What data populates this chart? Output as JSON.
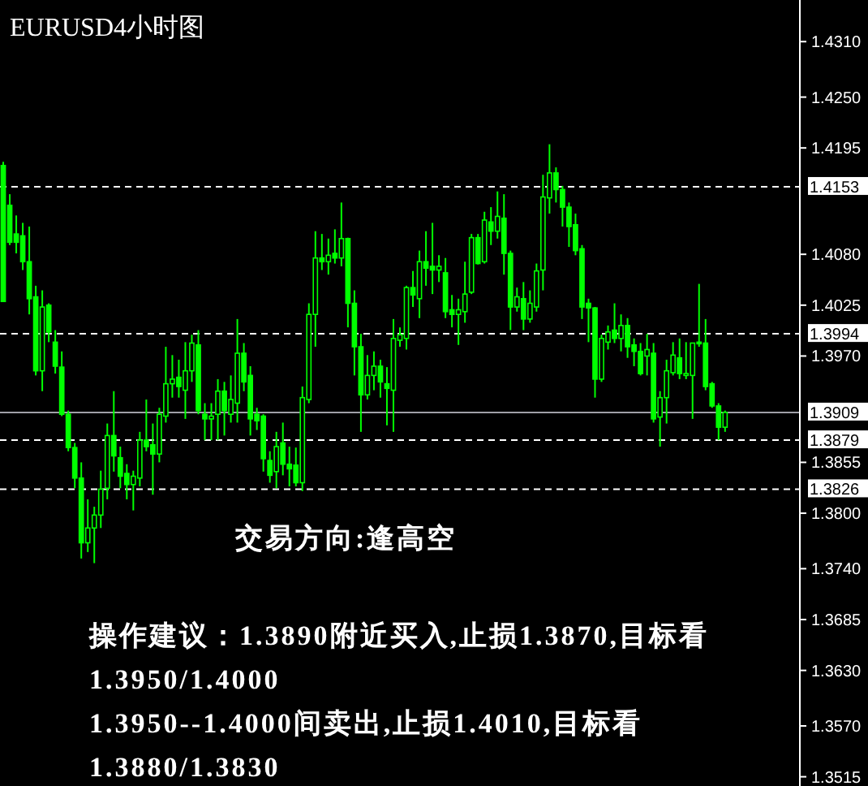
{
  "chart_data": {
    "type": "candlestick",
    "title": "EURUSD4小时图",
    "color": "#00ff00",
    "categories": [
      null,
      null,
      null,
      null,
      null,
      null,
      null,
      null,
      null,
      null,
      null,
      null,
      null,
      null,
      null,
      null,
      null,
      null,
      null,
      null,
      null,
      null,
      null,
      null,
      null,
      null,
      null,
      null,
      null,
      null,
      null,
      null,
      null,
      null,
      null,
      null,
      null,
      null,
      null,
      null,
      null,
      null,
      null,
      null,
      null,
      null,
      null,
      null,
      null,
      null,
      null,
      null,
      null,
      null,
      null,
      null,
      null,
      null,
      null,
      null,
      null,
      null,
      null,
      null,
      null,
      null,
      null,
      null,
      null,
      null,
      null,
      null,
      null,
      null,
      null,
      null,
      null,
      null,
      null,
      null,
      null,
      null,
      null,
      null,
      null,
      null,
      null,
      null,
      null,
      null,
      null,
      null,
      null,
      null,
      null,
      null,
      null,
      null,
      null,
      null,
      null,
      null,
      null,
      null,
      null,
      null,
      null,
      null,
      null,
      null,
      null,
      null
    ],
    "ohlc": [
      [
        1.4176,
        1.418,
        1.4029,
        1.4029
      ],
      [
        1.4133,
        1.4145,
        1.409,
        1.4093
      ],
      [
        1.4102,
        1.4122,
        1.4081,
        1.4093
      ],
      [
        1.41,
        1.4114,
        1.4063,
        1.4072
      ],
      [
        1.4072,
        1.411,
        1.4015,
        1.4032
      ],
      [
        1.4034,
        1.4046,
        1.3949,
        1.3954
      ],
      [
        1.3954,
        1.4041,
        1.3932,
        1.4023
      ],
      [
        1.4025,
        1.4027,
        1.3985,
        1.3996
      ],
      [
        1.3985,
        1.3998,
        1.3951,
        1.3959
      ],
      [
        1.3958,
        1.3975,
        1.3905,
        1.3907
      ],
      [
        1.3907,
        1.3911,
        1.3867,
        1.3871
      ],
      [
        1.3871,
        1.3876,
        1.3827,
        1.3838
      ],
      [
        1.3838,
        1.3855,
        1.3751,
        1.3768
      ],
      [
        1.3768,
        1.3815,
        1.3758,
        1.3784
      ],
      [
        1.3784,
        1.3807,
        1.3746,
        1.3798
      ],
      [
        1.3798,
        1.3846,
        1.3784,
        1.3826
      ],
      [
        1.3827,
        1.3897,
        1.3815,
        1.3884
      ],
      [
        1.3884,
        1.3932,
        1.3845,
        1.3862
      ],
      [
        1.386,
        1.3872,
        1.3827,
        1.384
      ],
      [
        1.3843,
        1.3853,
        1.3815,
        1.3831
      ],
      [
        1.3831,
        1.3846,
        1.3803,
        1.384
      ],
      [
        1.3838,
        1.3888,
        1.3829,
        1.3879
      ],
      [
        1.3879,
        1.3923,
        1.3867,
        1.3872
      ],
      [
        1.3874,
        1.3897,
        1.382,
        1.3864
      ],
      [
        1.3864,
        1.3914,
        1.3855,
        1.3907
      ],
      [
        1.3905,
        1.398,
        1.3898,
        1.394
      ],
      [
        1.394,
        1.3971,
        1.3925,
        1.3945
      ],
      [
        1.3947,
        1.3966,
        1.3925,
        1.3937
      ],
      [
        1.3933,
        1.3985,
        1.3902,
        1.3954
      ],
      [
        1.3954,
        1.3993,
        1.3942,
        1.3984
      ],
      [
        1.3982,
        1.3998,
        1.3907,
        1.3911
      ],
      [
        1.3907,
        1.3919,
        1.3879,
        1.3902
      ],
      [
        1.3902,
        1.3919,
        1.3879,
        1.3905
      ],
      [
        1.3907,
        1.3945,
        1.3879,
        1.3932
      ],
      [
        1.3932,
        1.3942,
        1.3884,
        1.3911
      ],
      [
        1.3907,
        1.3949,
        1.3898,
        1.3923
      ],
      [
        1.3919,
        1.401,
        1.3898,
        1.3973
      ],
      [
        1.3973,
        1.3984,
        1.3932,
        1.3942
      ],
      [
        1.3949,
        1.3959,
        1.3884,
        1.3902
      ],
      [
        1.3907,
        1.3914,
        1.389,
        1.39
      ],
      [
        1.3905,
        1.3907,
        1.3845,
        1.3859
      ],
      [
        1.3857,
        1.3867,
        1.3833,
        1.3841
      ],
      [
        1.3845,
        1.3888,
        1.3827,
        1.3872
      ],
      [
        1.3876,
        1.3898,
        1.3841,
        1.3853
      ],
      [
        1.3853,
        1.3872,
        1.3829,
        1.3848
      ],
      [
        1.3852,
        1.3871,
        1.3829,
        1.3833
      ],
      [
        1.3833,
        1.3937,
        1.3824,
        1.3925
      ],
      [
        1.3923,
        1.4027,
        1.3919,
        1.4015
      ],
      [
        1.4015,
        1.4105,
        1.398,
        1.4076
      ],
      [
        1.4076,
        1.4102,
        1.4063,
        1.4072
      ],
      [
        1.4072,
        1.4097,
        1.4058,
        1.4079
      ],
      [
        1.4081,
        1.4107,
        1.407,
        1.4076
      ],
      [
        1.4076,
        1.4136,
        1.4067,
        1.4097
      ],
      [
        1.4097,
        1.4098,
        1.4001,
        1.4027
      ],
      [
        1.4027,
        1.4041,
        1.3949,
        1.398
      ],
      [
        1.398,
        1.3994,
        1.3888,
        1.3928
      ],
      [
        1.3928,
        1.3971,
        1.3923,
        1.3949
      ],
      [
        1.3949,
        1.3975,
        1.3933,
        1.3959
      ],
      [
        1.3959,
        1.3966,
        1.3925,
        1.3942
      ],
      [
        1.394,
        1.3958,
        1.3895,
        1.3935
      ],
      [
        1.3933,
        1.401,
        1.3888,
        1.3989
      ],
      [
        1.3987,
        1.4001,
        1.398,
        1.3993
      ],
      [
        1.3989,
        1.4046,
        1.3977,
        1.4044
      ],
      [
        1.4044,
        1.4062,
        1.4023,
        1.4036
      ],
      [
        1.4032,
        1.4084,
        1.4011,
        1.4072
      ],
      [
        1.4072,
        1.4105,
        1.4046,
        1.4065
      ],
      [
        1.4067,
        1.4114,
        1.4037,
        1.4063
      ],
      [
        1.4063,
        1.4079,
        1.405,
        1.4067
      ],
      [
        1.406,
        1.4076,
        1.4011,
        1.4018
      ],
      [
        1.402,
        1.4036,
        1.4001,
        1.4015
      ],
      [
        1.4015,
        1.4032,
        1.3982,
        1.402
      ],
      [
        1.4018,
        1.4072,
        1.4006,
        1.4037
      ],
      [
        1.4039,
        1.4102,
        1.4037,
        1.4098
      ],
      [
        1.4098,
        1.4102,
        1.4069,
        1.407
      ],
      [
        1.4072,
        1.4126,
        1.407,
        1.4117
      ],
      [
        1.4115,
        1.4131,
        1.409,
        1.4105
      ],
      [
        1.4105,
        1.4148,
        1.4097,
        1.4121
      ],
      [
        1.4119,
        1.4145,
        1.4058,
        1.4081
      ],
      [
        1.4081,
        1.4084,
        1.3998,
        1.4023
      ],
      [
        1.4023,
        1.4044,
        1.4018,
        1.4034
      ],
      [
        1.4032,
        1.405,
        1.3998,
        1.401
      ],
      [
        1.401,
        1.4041,
        1.4006,
        1.4027
      ],
      [
        1.4023,
        1.407,
        1.4018,
        1.4062
      ],
      [
        1.4063,
        1.4166,
        1.4041,
        1.4142
      ],
      [
        1.4141,
        1.4199,
        1.4124,
        1.4168
      ],
      [
        1.4168,
        1.4174,
        1.4136,
        1.415
      ],
      [
        1.415,
        1.4154,
        1.411,
        1.4131
      ],
      [
        1.4131,
        1.4136,
        1.4088,
        1.411
      ],
      [
        1.4112,
        1.4124,
        1.4079,
        1.4084
      ],
      [
        1.4086,
        1.409,
        1.401,
        1.4023
      ],
      [
        1.4027,
        1.4032,
        1.3985,
        1.4022
      ],
      [
        1.4022,
        1.4023,
        1.3925,
        1.3945
      ],
      [
        1.3945,
        1.3993,
        1.3942,
        1.3989
      ],
      [
        1.3985,
        1.4003,
        1.3977,
        1.3996
      ],
      [
        1.3998,
        1.4027,
        1.3984,
        1.3989
      ],
      [
        1.3989,
        1.4015,
        1.3975,
        1.4003
      ],
      [
        1.4003,
        1.4011,
        1.3968,
        1.398
      ],
      [
        1.3982,
        1.3989,
        1.3959,
        1.3975
      ],
      [
        1.3975,
        1.3984,
        1.3949,
        1.3951
      ],
      [
        1.397,
        1.3994,
        1.3949,
        1.3977
      ],
      [
        1.3973,
        1.3984,
        1.3898,
        1.3902
      ],
      [
        1.3904,
        1.3932,
        1.3872,
        1.3925
      ],
      [
        1.3925,
        1.3966,
        1.3897,
        1.3954
      ],
      [
        1.3952,
        1.3985,
        1.3949,
        1.3971
      ],
      [
        1.3968,
        1.3989,
        1.3945,
        1.3951
      ],
      [
        1.3949,
        1.3985,
        1.3945,
        1.3951
      ],
      [
        1.3949,
        1.3984,
        1.3902,
        1.3984
      ],
      [
        1.3985,
        1.4048,
        1.398,
        1.3984
      ],
      [
        1.3984,
        1.401,
        1.3933,
        1.3937
      ],
      [
        1.394,
        1.3942,
        1.3914,
        1.3916
      ],
      [
        1.3916,
        1.3919,
        1.3879,
        1.3893
      ],
      [
        1.3893,
        1.3911,
        1.3888,
        1.3909
      ]
    ],
    "ylim": [
      1.3505,
      1.4355
    ],
    "yticks": [
      {
        "value": 1.431,
        "label": "1.4310"
      },
      {
        "value": 1.425,
        "label": "1.4250"
      },
      {
        "value": 1.4195,
        "label": "1.4195"
      },
      {
        "value": 1.408,
        "label": "1.4080"
      },
      {
        "value": 1.4025,
        "label": "1.4025"
      },
      {
        "value": 1.397,
        "label": "1.3970"
      },
      {
        "value": 1.3855,
        "label": "1.3855"
      },
      {
        "value": 1.38,
        "label": "1.3800"
      },
      {
        "value": 1.374,
        "label": "1.3740"
      },
      {
        "value": 1.3685,
        "label": "1.3685"
      },
      {
        "value": 1.363,
        "label": "1.3630"
      },
      {
        "value": 1.357,
        "label": "1.3570"
      },
      {
        "value": 1.3515,
        "label": "1.3515"
      }
    ],
    "ref_lines": [
      {
        "axis": "y",
        "value": 1.4153,
        "label": "1.4153",
        "color": "#ffffff",
        "line_style": "dashed"
      },
      {
        "axis": "y",
        "value": 1.3994,
        "label": "1.3994",
        "color": "#ffffff",
        "line_style": "dashed"
      },
      {
        "axis": "y",
        "value": 1.3909,
        "label": "1.3909",
        "color": "#a0a0a8",
        "line_style": "solid"
      },
      {
        "axis": "y",
        "value": 1.3879,
        "label": "1.3879",
        "color": "#ffffff",
        "line_style": "dashed"
      },
      {
        "axis": "y",
        "value": 1.3826,
        "label": "1.3826",
        "color": "#ffffff",
        "line_style": "dashed"
      }
    ],
    "annotations": [
      "交易方向:逢高空",
      "操作建议：1.3890附近买入,止损1.3870,目标看1.3950/1.4000",
      "1.3950--1.4000间卖出,止损1.4010,目标看1.3880/1.3830"
    ]
  }
}
